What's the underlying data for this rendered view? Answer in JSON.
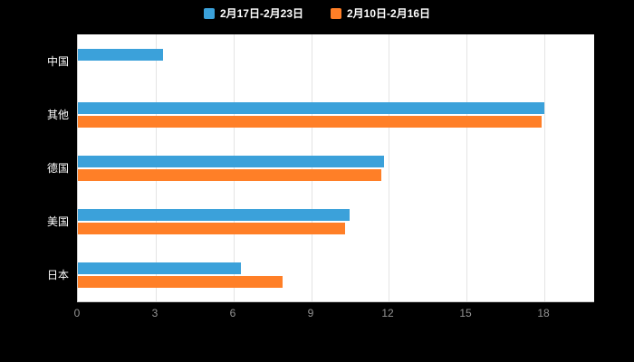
{
  "chart_data": {
    "type": "bar",
    "orientation": "horizontal",
    "title": "",
    "xlabel": "",
    "ylabel": "",
    "categories": [
      "中国",
      "其他",
      "德国",
      "美国",
      "日本"
    ],
    "series": [
      {
        "name": "2月17日-2月23日",
        "color": "#3ba1da",
        "values": [
          3.3,
          18.0,
          11.8,
          10.5,
          6.3
        ]
      },
      {
        "name": "2月10日-2月16日",
        "color": "#ff7f27",
        "values": [
          0,
          17.9,
          11.7,
          10.3,
          7.9
        ]
      }
    ],
    "legend": [
      "2月17日-2月23日",
      "2月10日-2月16日"
    ],
    "legend_position": "top",
    "xlim": [
      0,
      18
    ],
    "xticks": [
      0,
      3,
      6,
      9,
      12,
      15,
      18
    ],
    "grid": true,
    "background": "#000000",
    "plot_background": "#ffffff"
  }
}
